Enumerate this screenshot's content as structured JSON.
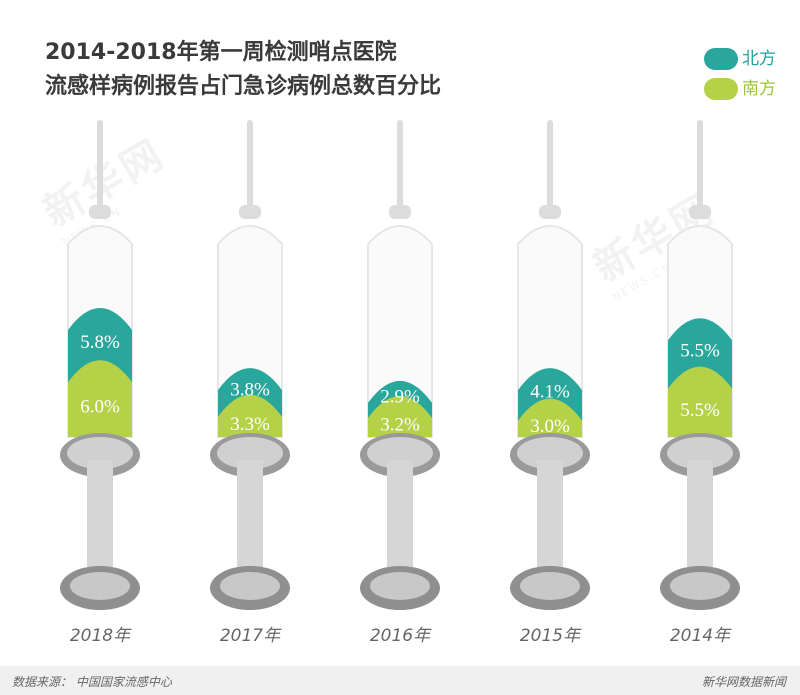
{
  "title": {
    "line1": "2014-2018年第一周检测哨点医院",
    "line2": "流感样病例报告占门急诊病例总数百分比"
  },
  "legend": [
    {
      "label": "北方",
      "color": "#2aa79c"
    },
    {
      "label": "南方",
      "color": "#b5d147"
    }
  ],
  "watermark": {
    "text": "新华网",
    "sub": "NEWS.CN"
  },
  "footer": {
    "source": "数据来源：  中国国家流感中心",
    "brand": "新华网数据新闻"
  },
  "chart_data": {
    "type": "bar",
    "categories": [
      "2018年",
      "2017年",
      "2016年",
      "2015年",
      "2014年"
    ],
    "series": [
      {
        "name": "北方",
        "values": [
          5.8,
          3.8,
          2.9,
          4.1,
          5.5
        ],
        "labels": [
          "5.8%",
          "3.8%",
          "2.9%",
          "4.1%",
          "5.5%"
        ],
        "color": "#2aa79c"
      },
      {
        "name": "南方",
        "values": [
          6.0,
          3.3,
          3.2,
          3.0,
          5.5
        ],
        "labels": [
          "6.0%",
          "3.3%",
          "3.2%",
          "3.0%",
          "5.5%"
        ],
        "color": "#b5d147"
      }
    ],
    "stacked": true,
    "xlabel": "",
    "ylabel": ""
  }
}
